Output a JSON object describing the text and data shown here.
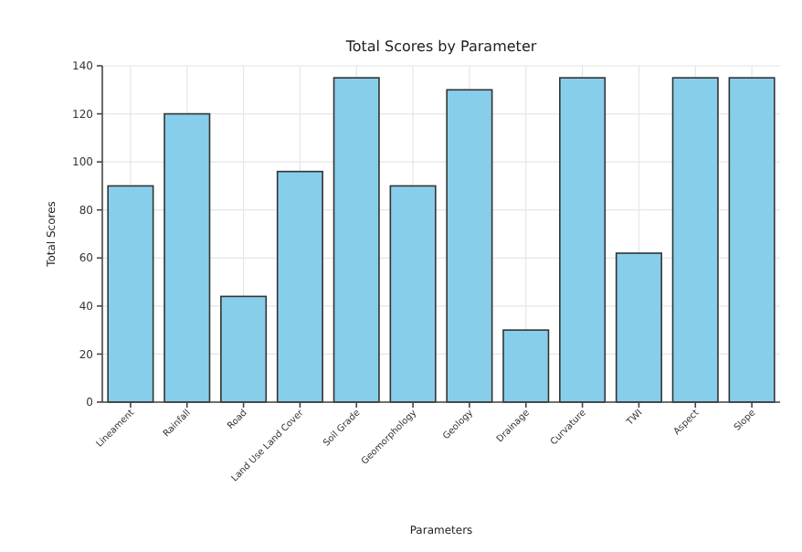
{
  "chart_data": {
    "type": "bar",
    "title": "Total Scores by Parameter",
    "xlabel": "Parameters",
    "ylabel": "Total Scores",
    "categories": [
      "Lineament",
      "Rainfall",
      "Road",
      "Land Use Land Cover",
      "Soil Grade",
      "Geomorphology",
      "Geology",
      "Drainage",
      "Curvature",
      "TWI",
      "Aspect",
      "Slope"
    ],
    "values": [
      90,
      120,
      44,
      96,
      135,
      90,
      130,
      30,
      135,
      62,
      135,
      135
    ],
    "color": "#87ceeb",
    "ylim": [
      0,
      140
    ],
    "yticks": [
      0,
      20,
      40,
      60,
      80,
      100,
      120,
      140
    ],
    "grid": true
  }
}
